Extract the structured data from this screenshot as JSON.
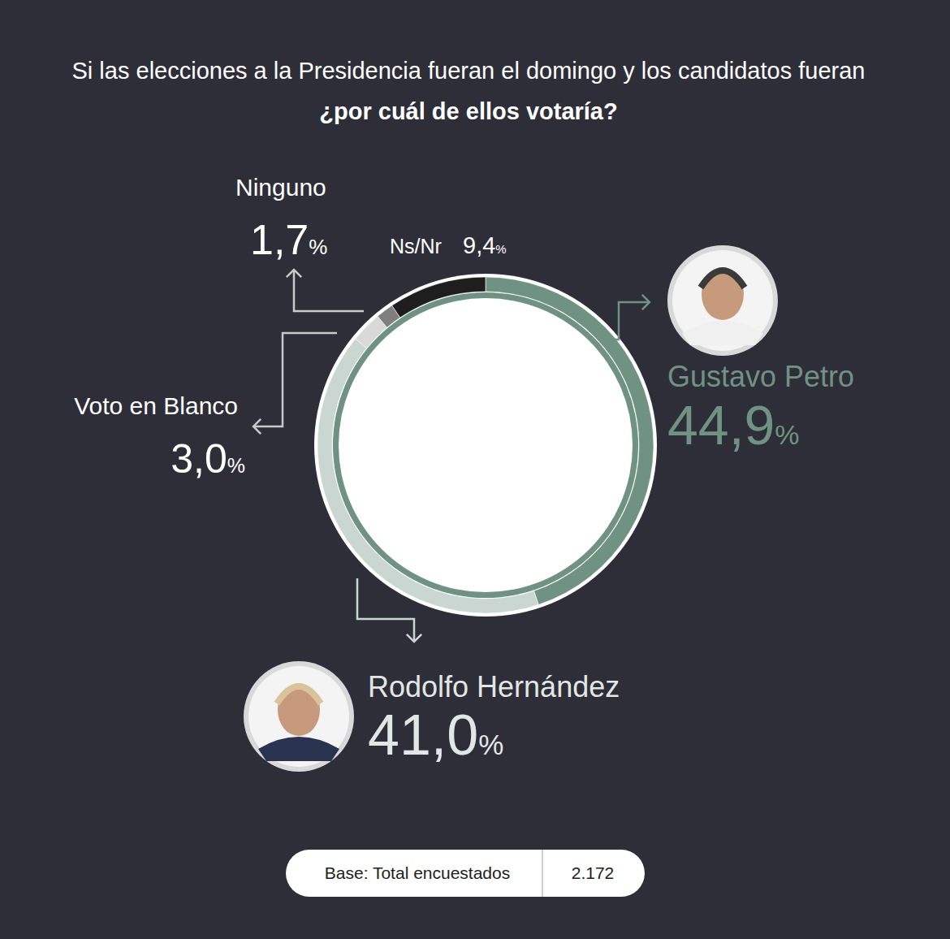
{
  "chart_data": {
    "type": "donut",
    "title": "Si las elecciones a la Presidencia fueran el domingo y los candidatos fueran",
    "subtitle": "¿por cuál de ellos votaría?",
    "categories": [
      "Gustavo Petro",
      "Rodolfo Hernández",
      "Voto en Blanco",
      "Ninguno",
      "Ns/Nr"
    ],
    "values": [
      44.9,
      41.0,
      3.0,
      1.7,
      9.4
    ],
    "value_labels": [
      "44,9%",
      "41,0%",
      "3,0%",
      "1,7%",
      "9,4%"
    ],
    "colors": [
      "#6f9282",
      "#c9d6d2",
      "#d9d9d9",
      "#7f7f7f",
      "#1e1e1e"
    ],
    "data_labels": true,
    "base": {
      "label": "Base: Total encuestados",
      "n": {
        "value": 2172,
        "label": "2.172"
      }
    }
  }
}
